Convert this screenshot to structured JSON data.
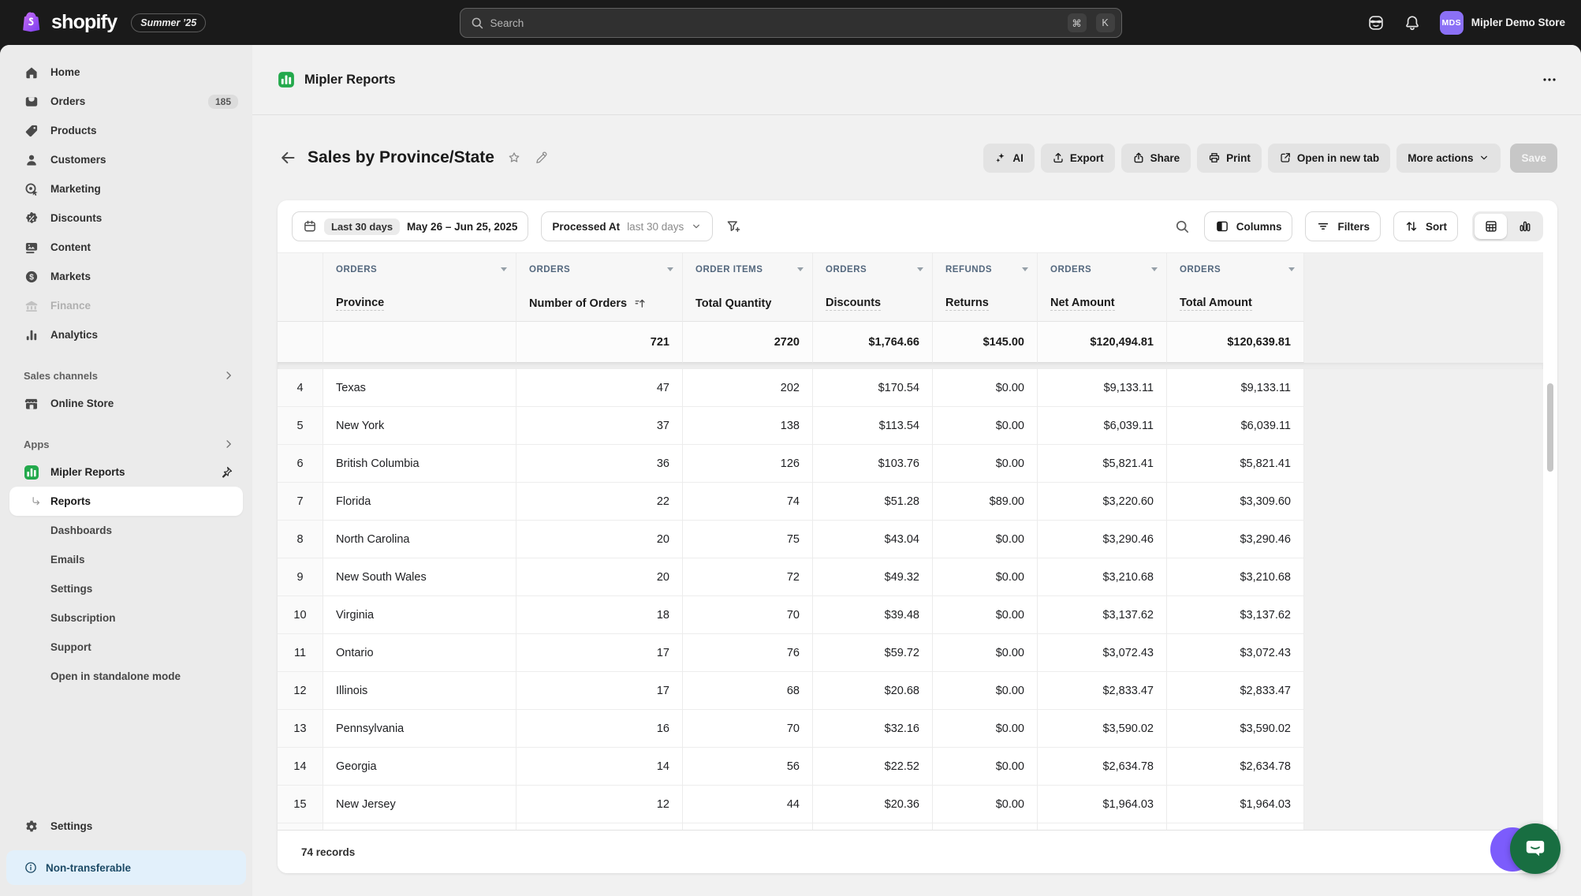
{
  "topbar": {
    "logo_text": "shopify",
    "version_badge": "Summer ’25",
    "search": {
      "placeholder": "Search",
      "shortcut_cmd": "⌘",
      "shortcut_key": "K"
    },
    "store": {
      "initials": "MDS",
      "name": "Mipler Demo Store"
    }
  },
  "sidebar": {
    "items": [
      {
        "label": "Home",
        "icon": "home-icon"
      },
      {
        "label": "Orders",
        "icon": "orders-icon",
        "badge": "185"
      },
      {
        "label": "Products",
        "icon": "products-icon"
      },
      {
        "label": "Customers",
        "icon": "customers-icon"
      },
      {
        "label": "Marketing",
        "icon": "marketing-icon"
      },
      {
        "label": "Discounts",
        "icon": "discounts-icon"
      },
      {
        "label": "Content",
        "icon": "content-icon"
      },
      {
        "label": "Markets",
        "icon": "markets-icon"
      },
      {
        "label": "Finance",
        "icon": "finance-icon",
        "disabled": true
      },
      {
        "label": "Analytics",
        "icon": "analytics-icon"
      }
    ],
    "sections": {
      "sales_channels": "Sales channels",
      "apps": "Apps"
    },
    "online_store_label": "Online Store",
    "app": {
      "name": "Mipler Reports",
      "subitems": [
        "Reports",
        "Dashboards",
        "Emails",
        "Settings",
        "Subscription",
        "Support",
        "Open in standalone mode"
      ],
      "active_subitem": "Reports"
    },
    "settings_label": "Settings",
    "notice": "Non-transferable"
  },
  "header": {
    "app_title": "Mipler Reports",
    "page_title": "Sales by Province/State",
    "actions": {
      "ai": "AI",
      "export": "Export",
      "share": "Share",
      "print": "Print",
      "open_new_tab": "Open in new tab",
      "more": "More actions",
      "save": "Save"
    }
  },
  "toolbar": {
    "date_preset": "Last 30 days",
    "date_range": "May 26 – Jun 25, 2025",
    "dimension_label": "Processed At",
    "dimension_value": "last 30 days",
    "columns_label": "Columns",
    "filters_label": "Filters",
    "sort_label": "Sort"
  },
  "table": {
    "groups": [
      "ORDERS",
      "ORDERS",
      "ORDER ITEMS",
      "ORDERS",
      "REFUNDS",
      "ORDERS",
      "ORDERS"
    ],
    "columns": [
      {
        "name": "Province",
        "hint": true
      },
      {
        "name": "Number of Orders",
        "sorted": true
      },
      {
        "name": "Total Quantity"
      },
      {
        "name": "Discounts",
        "hint": true
      },
      {
        "name": "Returns",
        "hint": true
      },
      {
        "name": "Net Amount",
        "hint": true
      },
      {
        "name": "Total Amount",
        "hint": true
      }
    ],
    "summary": [
      "",
      "721",
      "2720",
      "$1,764.66",
      "$145.00",
      "$120,494.81",
      "$120,639.81"
    ],
    "rows": [
      {
        "n": "4",
        "cells": [
          "Texas",
          "47",
          "202",
          "$170.54",
          "$0.00",
          "$9,133.11",
          "$9,133.11"
        ]
      },
      {
        "n": "5",
        "cells": [
          "New York",
          "37",
          "138",
          "$113.54",
          "$0.00",
          "$6,039.11",
          "$6,039.11"
        ]
      },
      {
        "n": "6",
        "cells": [
          "British Columbia",
          "36",
          "126",
          "$103.76",
          "$0.00",
          "$5,821.41",
          "$5,821.41"
        ]
      },
      {
        "n": "7",
        "cells": [
          "Florida",
          "22",
          "74",
          "$51.28",
          "$89.00",
          "$3,220.60",
          "$3,309.60"
        ]
      },
      {
        "n": "8",
        "cells": [
          "North Carolina",
          "20",
          "75",
          "$43.04",
          "$0.00",
          "$3,290.46",
          "$3,290.46"
        ]
      },
      {
        "n": "9",
        "cells": [
          "New South Wales",
          "20",
          "72",
          "$49.32",
          "$0.00",
          "$3,210.68",
          "$3,210.68"
        ]
      },
      {
        "n": "10",
        "cells": [
          "Virginia",
          "18",
          "70",
          "$39.48",
          "$0.00",
          "$3,137.62",
          "$3,137.62"
        ]
      },
      {
        "n": "11",
        "cells": [
          "Ontario",
          "17",
          "76",
          "$59.72",
          "$0.00",
          "$3,072.43",
          "$3,072.43"
        ]
      },
      {
        "n": "12",
        "cells": [
          "Illinois",
          "17",
          "68",
          "$20.68",
          "$0.00",
          "$2,833.47",
          "$2,833.47"
        ]
      },
      {
        "n": "13",
        "cells": [
          "Pennsylvania",
          "16",
          "70",
          "$32.16",
          "$0.00",
          "$3,590.02",
          "$3,590.02"
        ]
      },
      {
        "n": "14",
        "cells": [
          "Georgia",
          "14",
          "56",
          "$22.52",
          "$0.00",
          "$2,634.78",
          "$2,634.78"
        ]
      },
      {
        "n": "15",
        "cells": [
          "New Jersey",
          "12",
          "44",
          "$20.36",
          "$0.00",
          "$1,964.03",
          "$1,964.03"
        ]
      }
    ],
    "record_count": "74 records"
  },
  "colors": {
    "topbar": "#1a1a1a",
    "accent_green": "#23a94c",
    "avatar_purple": "#8b70f6",
    "notice_blue": "#1c4a66",
    "chat_green": "#186e41",
    "chat_purple": "#7c5cfc"
  }
}
